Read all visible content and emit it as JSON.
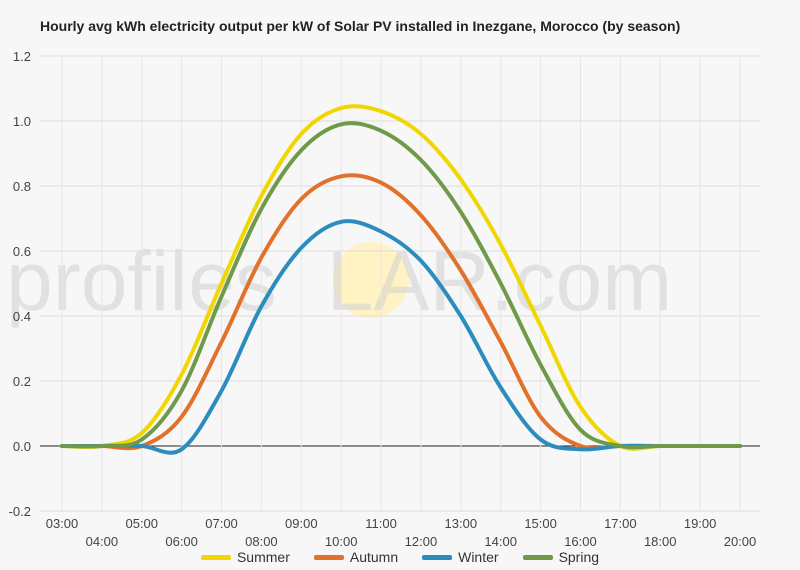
{
  "chart_data": {
    "type": "line",
    "title": "Hourly avg kWh electricity output per kW of Solar PV installed in Inezgane, Morocco (by season)",
    "xlabel": "",
    "ylabel": "",
    "ylim": [
      -0.2,
      1.2
    ],
    "yticks": [
      "1.2",
      "1.0",
      "0.8",
      "0.6",
      "0.4",
      "0.2",
      "0.0",
      "-0.2"
    ],
    "x": [
      "03:00",
      "04:00",
      "05:00",
      "06:00",
      "07:00",
      "08:00",
      "09:00",
      "10:00",
      "11:00",
      "12:00",
      "13:00",
      "14:00",
      "15:00",
      "16:00",
      "17:00",
      "18:00",
      "19:00",
      "20:00"
    ],
    "grid": true,
    "legend_position": "bottom",
    "series": [
      {
        "name": "Summer",
        "color": "#f2d600",
        "values": [
          0.0,
          0.0,
          0.04,
          0.22,
          0.5,
          0.77,
          0.96,
          1.04,
          1.03,
          0.96,
          0.82,
          0.62,
          0.37,
          0.12,
          0.0,
          0.0,
          0.0,
          0.0
        ]
      },
      {
        "name": "Autumn",
        "color": "#e2712b",
        "values": [
          0.0,
          0.0,
          0.0,
          0.09,
          0.32,
          0.58,
          0.76,
          0.83,
          0.81,
          0.71,
          0.54,
          0.32,
          0.09,
          0.0,
          0.0,
          0.0,
          0.0,
          0.0
        ]
      },
      {
        "name": "Winter",
        "color": "#2b8cbe",
        "values": [
          0.0,
          0.0,
          0.0,
          -0.01,
          0.17,
          0.43,
          0.61,
          0.69,
          0.66,
          0.57,
          0.4,
          0.18,
          0.02,
          -0.01,
          0.0,
          0.0,
          0.0,
          0.0
        ]
      },
      {
        "name": "Spring",
        "color": "#6f9a4a",
        "values": [
          0.0,
          0.0,
          0.02,
          0.17,
          0.46,
          0.73,
          0.91,
          0.99,
          0.97,
          0.88,
          0.72,
          0.5,
          0.25,
          0.05,
          0.0,
          0.0,
          0.0,
          0.0
        ]
      }
    ]
  },
  "watermark": {
    "left_text": "profile",
    "s_letter": "s",
    "right_text": "LAR.com",
    "sun_color": "#fff3c4"
  }
}
